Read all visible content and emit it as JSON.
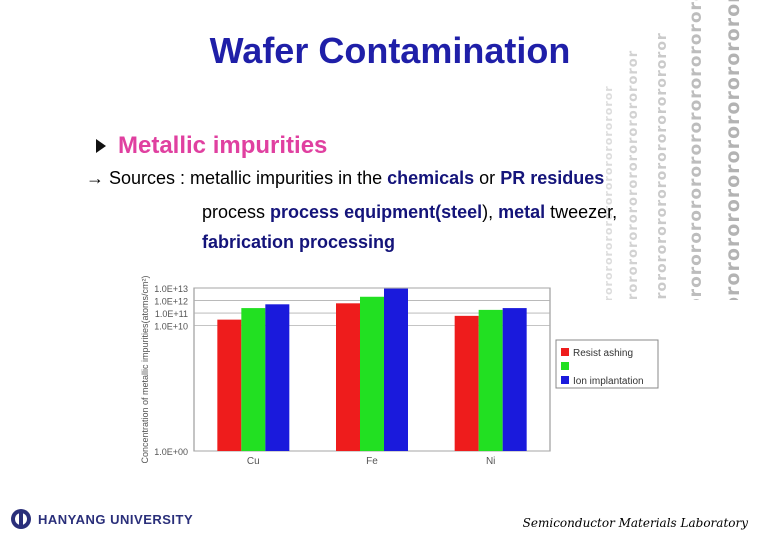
{
  "slide": {
    "title": "Wafer Contamination",
    "bullet": "Metallic impurities",
    "sources": {
      "arrow_prefix": "→ Sources : metallic impurities in the ",
      "chemicals": "chemicals",
      "or": " or ",
      "pr_residues": "PR residues",
      "line2_equipment": "process equipment(steel",
      "line2_sep": "), ",
      "line2_metal": "metal",
      "line2_rest": " tweezer,",
      "line3": "fabrication processing"
    },
    "decor_pattern": "ororororororororororororororor"
  },
  "footer": {
    "university": "HANYANG UNIVERSITY",
    "lab": "Semiconductor Materials Laboratory"
  },
  "chart_data": {
    "type": "bar",
    "ylabel": "Concentration of metallic impurities(atoms/cm²)",
    "yscale": "log",
    "ylim": [
      1,
      10000000000000.0
    ],
    "yticks": [
      "1.0E+00",
      "1.0E+10",
      "1.0E+11",
      "1.0E+12",
      "1.0E+13"
    ],
    "categories": [
      "Cu",
      "Fe",
      "Ni"
    ],
    "series": [
      {
        "name": "Resist ashing",
        "color": "#ee1c1c",
        "values": [
          30000000000.0,
          600000000000.0,
          60000000000.0
        ]
      },
      {
        "name": "",
        "color": "#22e022",
        "values": [
          250000000000.0,
          2000000000000.0,
          180000000000.0
        ]
      },
      {
        "name": "Ion implantation",
        "color": "#1a1adc",
        "values": [
          500000000000.0,
          9000000000000.0,
          250000000000.0
        ]
      }
    ],
    "grid": true,
    "legend_position": "right"
  }
}
